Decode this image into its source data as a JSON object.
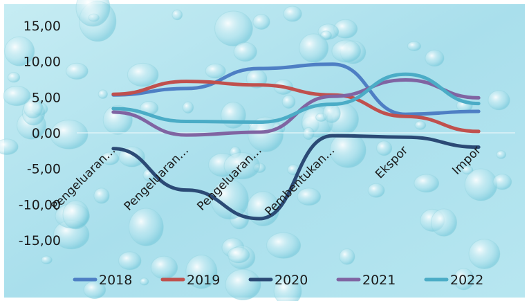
{
  "chart_data": {
    "type": "line",
    "title": "",
    "xlabel": "",
    "ylabel": "",
    "categories": [
      "Pengeluaran…",
      "Pengeluaran…",
      "Pengeluaran…",
      "Pembentukan…",
      "Ekspor",
      "Impor"
    ],
    "ylim": [
      -15,
      15
    ],
    "yticks": [
      15,
      10,
      5,
      0,
      -5,
      -10,
      -15
    ],
    "ytick_labels": [
      "15,00",
      "10,00",
      "5,00",
      "0,00",
      "-5,00",
      "-10,00",
      "-15,00"
    ],
    "grid": false,
    "legend_position": "bottom",
    "series": [
      {
        "name": "2018",
        "color": "#4e7fc4",
        "values": [
          5.3,
          6.2,
          9.0,
          9.6,
          2.6,
          3.0
        ]
      },
      {
        "name": "2019",
        "color": "#c0504d",
        "values": [
          5.4,
          7.2,
          6.7,
          5.3,
          2.3,
          0.2
        ]
      },
      {
        "name": "2020",
        "color": "#2b4a75",
        "values": [
          -2.2,
          -8.0,
          -12.0,
          -0.4,
          -0.6,
          -2.0
        ]
      },
      {
        "name": "2021",
        "color": "#8064a2",
        "values": [
          2.9,
          -0.3,
          0.1,
          5.1,
          7.4,
          4.9
        ]
      },
      {
        "name": "2022",
        "color": "#4bacc6",
        "values": [
          3.4,
          1.6,
          1.5,
          4.0,
          8.2,
          4.1
        ]
      }
    ]
  }
}
